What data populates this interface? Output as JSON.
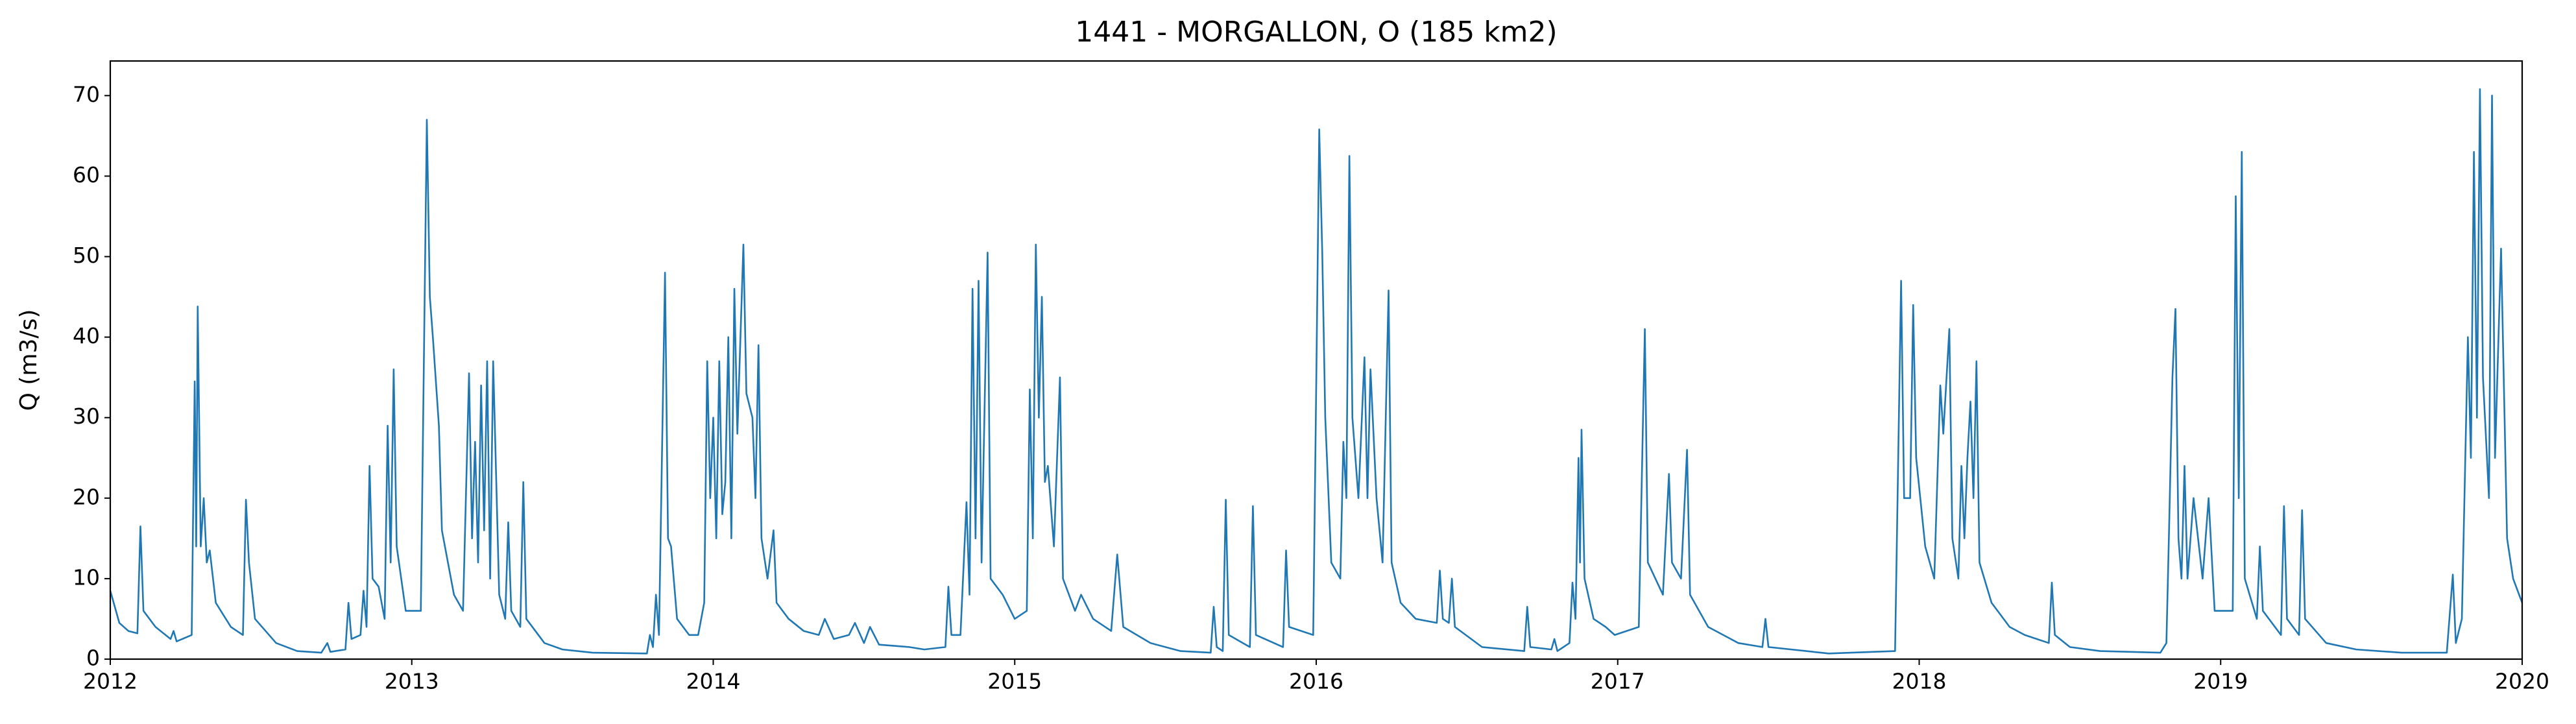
{
  "chart_data": {
    "type": "line",
    "title": "1441 - MORGALLON, O (185 km2)",
    "y_label": "Q (m3/s)",
    "xlim": [
      2012,
      2020
    ],
    "xticks": [
      2012,
      2013,
      2014,
      2015,
      2016,
      2017,
      2018,
      2019,
      2020
    ],
    "ylim": [
      0,
      74.3
    ],
    "yticks": [
      0,
      10,
      20,
      30,
      40,
      50,
      60,
      70
    ],
    "grid": false,
    "series": [
      {
        "color": "#1f77b4",
        "x": [
          2012.0,
          2012.03,
          2012.06,
          2012.09,
          2012.1,
          2012.11,
          2012.15,
          2012.2,
          2012.21,
          2012.22,
          2012.27,
          2012.28,
          2012.285,
          2012.29,
          2012.3,
          2012.31,
          2012.32,
          2012.33,
          2012.35,
          2012.4,
          2012.44,
          2012.45,
          2012.46,
          2012.48,
          2012.55,
          2012.62,
          2012.7,
          2012.72,
          2012.73,
          2012.78,
          2012.79,
          2012.8,
          2012.83,
          2012.84,
          2012.85,
          2012.86,
          2012.87,
          2012.89,
          2012.91,
          2012.92,
          2012.93,
          2012.94,
          2012.95,
          2012.98,
          2013.03,
          2013.05,
          2013.06,
          2013.07,
          2013.09,
          2013.1,
          2013.14,
          2013.17,
          2013.19,
          2013.2,
          2013.21,
          2013.22,
          2013.23,
          2013.24,
          2013.25,
          2013.26,
          2013.27,
          2013.29,
          2013.31,
          2013.32,
          2013.33,
          2013.36,
          2013.37,
          2013.38,
          2013.44,
          2013.5,
          2013.6,
          2013.78,
          2013.79,
          2013.8,
          2013.81,
          2013.82,
          2013.84,
          2013.85,
          2013.86,
          2013.88,
          2013.92,
          2013.95,
          2013.97,
          2013.98,
          2013.99,
          2014.0,
          2014.01,
          2014.02,
          2014.03,
          2014.04,
          2014.05,
          2014.06,
          2014.07,
          2014.08,
          2014.1,
          2014.11,
          2014.13,
          2014.14,
          2014.15,
          2014.16,
          2014.18,
          2014.2,
          2014.21,
          2014.25,
          2014.3,
          2014.35,
          2014.37,
          2014.4,
          2014.45,
          2014.47,
          2014.5,
          2014.52,
          2014.55,
          2014.65,
          2014.7,
          2014.77,
          2014.78,
          2014.79,
          2014.82,
          2014.84,
          2014.85,
          2014.86,
          2014.87,
          2014.88,
          2014.89,
          2014.91,
          2014.92,
          2014.96,
          2015.0,
          2015.04,
          2015.05,
          2015.06,
          2015.07,
          2015.08,
          2015.09,
          2015.1,
          2015.11,
          2015.13,
          2015.15,
          2015.16,
          2015.2,
          2015.22,
          2015.26,
          2015.32,
          2015.34,
          2015.36,
          2015.45,
          2015.55,
          2015.65,
          2015.66,
          2015.67,
          2015.69,
          2015.7,
          2015.71,
          2015.78,
          2015.79,
          2015.8,
          2015.89,
          2015.9,
          2015.91,
          2015.99,
          2016.0,
          2016.01,
          2016.02,
          2016.03,
          2016.05,
          2016.08,
          2016.09,
          2016.1,
          2016.11,
          2016.12,
          2016.14,
          2016.16,
          2016.17,
          2016.18,
          2016.2,
          2016.22,
          2016.24,
          2016.25,
          2016.28,
          2016.33,
          2016.4,
          2016.41,
          2016.42,
          2016.44,
          2016.45,
          2016.46,
          2016.55,
          2016.69,
          2016.7,
          2016.71,
          2016.78,
          2016.79,
          2016.8,
          2016.84,
          2016.85,
          2016.86,
          2016.87,
          2016.875,
          2016.88,
          2016.89,
          2016.92,
          2016.96,
          2016.99,
          2017.07,
          2017.09,
          2017.1,
          2017.15,
          2017.17,
          2017.18,
          2017.21,
          2017.23,
          2017.24,
          2017.3,
          2017.4,
          2017.48,
          2017.49,
          2017.5,
          2017.7,
          2017.92,
          2017.94,
          2017.95,
          2017.97,
          2017.98,
          2017.99,
          2018.02,
          2018.05,
          2018.07,
          2018.08,
          2018.1,
          2018.11,
          2018.13,
          2018.14,
          2018.15,
          2018.16,
          2018.17,
          2018.18,
          2018.19,
          2018.2,
          2018.24,
          2018.3,
          2018.35,
          2018.43,
          2018.44,
          2018.45,
          2018.5,
          2018.6,
          2018.8,
          2018.82,
          2018.83,
          2018.84,
          2018.85,
          2018.86,
          2018.87,
          2018.88,
          2018.89,
          2018.91,
          2018.94,
          2018.96,
          2018.98,
          2019.04,
          2019.05,
          2019.06,
          2019.07,
          2019.08,
          2019.12,
          2019.13,
          2019.14,
          2019.2,
          2019.21,
          2019.22,
          2019.26,
          2019.27,
          2019.28,
          2019.35,
          2019.45,
          2019.6,
          2019.75,
          2019.77,
          2019.78,
          2019.8,
          2019.82,
          2019.83,
          2019.84,
          2019.85,
          2019.86,
          2019.87,
          2019.89,
          2019.9,
          2019.91,
          2019.93,
          2019.95,
          2019.97,
          2020.0
        ],
        "values": [
          8.5,
          4.5,
          3.5,
          3.2,
          16.5,
          6,
          4,
          2.5,
          3.5,
          2.2,
          3,
          34.5,
          14,
          43.8,
          14,
          20,
          12,
          13.5,
          7,
          4,
          3,
          19.8,
          12,
          5,
          2,
          1,
          0.8,
          2,
          0.9,
          1.2,
          7,
          2.5,
          3,
          8.5,
          4,
          24,
          10,
          9,
          5,
          29,
          12,
          36,
          14,
          6,
          6,
          67,
          45,
          40,
          29,
          16,
          8,
          6,
          35.5,
          15,
          27,
          12,
          34,
          16,
          37,
          10,
          37,
          8,
          5,
          17,
          6,
          4,
          22,
          5,
          2,
          1.2,
          0.8,
          0.7,
          3,
          1.5,
          8,
          3,
          48,
          15,
          14,
          5,
          3,
          3,
          7,
          37,
          20,
          30,
          15,
          37,
          18,
          22,
          40,
          15,
          46,
          28,
          51.5,
          33,
          30,
          20,
          39,
          15,
          10,
          16,
          7,
          5,
          3.5,
          3,
          5,
          2.5,
          3,
          4.5,
          2,
          4,
          1.8,
          1.5,
          1.2,
          1.5,
          9,
          3,
          3,
          19.5,
          8,
          46,
          15,
          47,
          12,
          50.5,
          10,
          8,
          5,
          6,
          33.5,
          15,
          51.5,
          30,
          45,
          22,
          24,
          14,
          35,
          10,
          6,
          8,
          5,
          3.5,
          13,
          4,
          2,
          1,
          0.8,
          6.5,
          1.5,
          1,
          19.8,
          3,
          1.5,
          19,
          3,
          1.5,
          13.5,
          4,
          3,
          34,
          65.8,
          50.5,
          30,
          12,
          10,
          27,
          20,
          62.5,
          30,
          20,
          37.5,
          20,
          36,
          20,
          12,
          45.8,
          12,
          7,
          5,
          4.5,
          11,
          5,
          4.5,
          10,
          4,
          1.5,
          1,
          6.5,
          1.5,
          1.2,
          2.5,
          1,
          2,
          9.5,
          5,
          25,
          12,
          28.5,
          10,
          5,
          4,
          3,
          4,
          41,
          12,
          8,
          23,
          12,
          10,
          26,
          8,
          4,
          2,
          1.5,
          5,
          1.5,
          0.7,
          1,
          47,
          20,
          20,
          44,
          25,
          14,
          10,
          34,
          28,
          41,
          15,
          10,
          24,
          15,
          25,
          32,
          20,
          37,
          12,
          7,
          4,
          3,
          2,
          9.5,
          3,
          1.5,
          1,
          0.8,
          2,
          18,
          35,
          43.5,
          15,
          10,
          24,
          10,
          20,
          10,
          20,
          6,
          6,
          57.5,
          20,
          63,
          10,
          5,
          14,
          6,
          3,
          19,
          5,
          3,
          18.5,
          5,
          2,
          1.2,
          0.8,
          0.8,
          10.5,
          2,
          5,
          40,
          25,
          63,
          30,
          70.8,
          35,
          20,
          70,
          25,
          51,
          15,
          10,
          7
        ]
      }
    ]
  }
}
